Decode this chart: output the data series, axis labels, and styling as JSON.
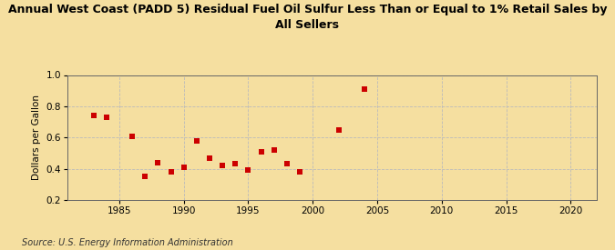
{
  "title": "Annual West Coast (PADD 5) Residual Fuel Oil Sulfur Less Than or Equal to 1% Retail Sales by\nAll Sellers",
  "ylabel": "Dollars per Gallon",
  "source": "Source: U.S. Energy Information Administration",
  "background_color": "#f5dfa0",
  "plot_bg_color": "#fdf6e3",
  "marker_color": "#cc0000",
  "xlim": [
    1981,
    2022
  ],
  "ylim": [
    0.2,
    1.0
  ],
  "xticks": [
    1985,
    1990,
    1995,
    2000,
    2005,
    2010,
    2015,
    2020
  ],
  "yticks": [
    0.2,
    0.4,
    0.6,
    0.8,
    1.0
  ],
  "data_x": [
    1983,
    1984,
    1986,
    1987,
    1988,
    1989,
    1990,
    1991,
    1992,
    1993,
    1994,
    1995,
    1996,
    1997,
    1998,
    1999,
    2002,
    2004
  ],
  "data_y": [
    0.74,
    0.73,
    0.61,
    0.35,
    0.44,
    0.38,
    0.41,
    0.58,
    0.47,
    0.42,
    0.43,
    0.39,
    0.51,
    0.52,
    0.43,
    0.38,
    0.65,
    0.91
  ],
  "title_fontsize": 9,
  "label_fontsize": 7.5,
  "tick_fontsize": 7.5,
  "source_fontsize": 7
}
